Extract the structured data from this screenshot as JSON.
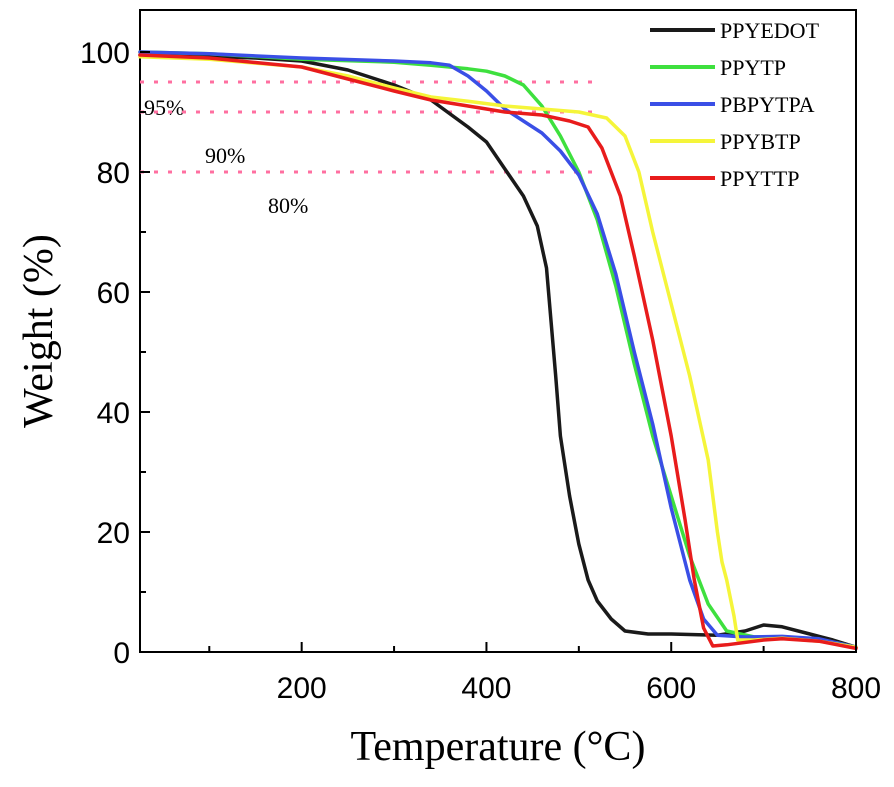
{
  "chart_data": {
    "type": "line",
    "title": "",
    "xlabel": "Temperature (°C)",
    "ylabel": "Weight (%)",
    "xlim": [
      25,
      800
    ],
    "ylim": [
      0,
      107
    ],
    "xticks": [
      200,
      400,
      600,
      800
    ],
    "yticks": [
      0,
      20,
      40,
      60,
      80,
      100
    ],
    "grid": false,
    "legend": "top-right",
    "reference_lines": [
      {
        "y": 95,
        "label": "95%",
        "x_end": 515
      },
      {
        "y": 90,
        "label": "90%",
        "x_end": 515
      },
      {
        "y": 80,
        "label": "80%",
        "x_end": 515
      }
    ],
    "series": [
      {
        "name": "PPYEDOT",
        "color": "#1a1a1a",
        "points": [
          [
            25,
            99.5
          ],
          [
            100,
            99.3
          ],
          [
            150,
            99.0
          ],
          [
            200,
            98.5
          ],
          [
            250,
            97.0
          ],
          [
            300,
            94.5
          ],
          [
            340,
            92.0
          ],
          [
            380,
            87.5
          ],
          [
            400,
            85.0
          ],
          [
            420,
            80.5
          ],
          [
            440,
            76.0
          ],
          [
            455,
            71.0
          ],
          [
            465,
            64.0
          ],
          [
            470,
            55.0
          ],
          [
            475,
            46.0
          ],
          [
            480,
            36.0
          ],
          [
            490,
            26.0
          ],
          [
            500,
            18.0
          ],
          [
            510,
            12.0
          ],
          [
            520,
            8.5
          ],
          [
            535,
            5.5
          ],
          [
            550,
            3.5
          ],
          [
            575,
            3.0
          ],
          [
            600,
            3.0
          ],
          [
            650,
            2.8
          ],
          [
            680,
            3.5
          ],
          [
            700,
            4.5
          ],
          [
            720,
            4.2
          ],
          [
            750,
            3.0
          ],
          [
            775,
            2.0
          ],
          [
            800,
            0.8
          ]
        ]
      },
      {
        "name": "PPYTP",
        "color": "#3ee03e",
        "points": [
          [
            25,
            100.0
          ],
          [
            100,
            99.7
          ],
          [
            200,
            98.8
          ],
          [
            300,
            98.3
          ],
          [
            340,
            97.8
          ],
          [
            380,
            97.2
          ],
          [
            400,
            96.8
          ],
          [
            420,
            96.0
          ],
          [
            440,
            94.5
          ],
          [
            460,
            91.0
          ],
          [
            480,
            86.0
          ],
          [
            500,
            80.0
          ],
          [
            520,
            72.0
          ],
          [
            540,
            61.0
          ],
          [
            560,
            48.0
          ],
          [
            580,
            36.0
          ],
          [
            600,
            26.0
          ],
          [
            620,
            16.0
          ],
          [
            640,
            8.0
          ],
          [
            660,
            3.5
          ],
          [
            690,
            2.5
          ],
          [
            720,
            2.5
          ],
          [
            750,
            2.2
          ],
          [
            780,
            1.5
          ],
          [
            800,
            0.8
          ]
        ]
      },
      {
        "name": "PBPYTPA",
        "color": "#3a4fe6",
        "points": [
          [
            25,
            100.0
          ],
          [
            100,
            99.7
          ],
          [
            200,
            99.0
          ],
          [
            300,
            98.5
          ],
          [
            340,
            98.2
          ],
          [
            360,
            97.8
          ],
          [
            380,
            96.0
          ],
          [
            400,
            93.5
          ],
          [
            420,
            90.5
          ],
          [
            440,
            88.5
          ],
          [
            460,
            86.5
          ],
          [
            480,
            83.5
          ],
          [
            500,
            79.5
          ],
          [
            520,
            73.0
          ],
          [
            540,
            63.0
          ],
          [
            560,
            50.0
          ],
          [
            580,
            38.0
          ],
          [
            600,
            24.0
          ],
          [
            620,
            12.0
          ],
          [
            635,
            5.5
          ],
          [
            650,
            2.8
          ],
          [
            680,
            2.5
          ],
          [
            720,
            2.6
          ],
          [
            760,
            2.2
          ],
          [
            800,
            0.8
          ]
        ]
      },
      {
        "name": "PPYBTP",
        "color": "#f5f53a",
        "points": [
          [
            25,
            99.2
          ],
          [
            100,
            98.8
          ],
          [
            200,
            97.5
          ],
          [
            250,
            96.0
          ],
          [
            300,
            94.0
          ],
          [
            340,
            92.5
          ],
          [
            380,
            91.8
          ],
          [
            420,
            91.0
          ],
          [
            460,
            90.5
          ],
          [
            500,
            90.0
          ],
          [
            530,
            89.0
          ],
          [
            550,
            86.0
          ],
          [
            565,
            80.0
          ],
          [
            580,
            70.0
          ],
          [
            600,
            58.0
          ],
          [
            620,
            46.0
          ],
          [
            640,
            32.0
          ],
          [
            650,
            20.0
          ],
          [
            655,
            15.0
          ],
          [
            660,
            12.0
          ],
          [
            668,
            6.0
          ],
          [
            672,
            2.0
          ],
          [
            690,
            2.0
          ],
          [
            720,
            2.3
          ],
          [
            760,
            1.8
          ],
          [
            800,
            0.8
          ]
        ]
      },
      {
        "name": "PPYTTP",
        "color": "#e81c1c",
        "points": [
          [
            25,
            99.5
          ],
          [
            100,
            99.0
          ],
          [
            200,
            97.5
          ],
          [
            250,
            95.5
          ],
          [
            300,
            93.5
          ],
          [
            340,
            92.0
          ],
          [
            380,
            91.0
          ],
          [
            420,
            90.0
          ],
          [
            460,
            89.5
          ],
          [
            490,
            88.5
          ],
          [
            510,
            87.5
          ],
          [
            525,
            84.0
          ],
          [
            545,
            76.0
          ],
          [
            560,
            66.0
          ],
          [
            580,
            52.0
          ],
          [
            600,
            36.0
          ],
          [
            615,
            22.0
          ],
          [
            625,
            12.0
          ],
          [
            635,
            4.0
          ],
          [
            645,
            1.0
          ],
          [
            660,
            1.2
          ],
          [
            700,
            2.0
          ],
          [
            720,
            2.2
          ],
          [
            760,
            1.8
          ],
          [
            800,
            0.6
          ]
        ]
      }
    ]
  }
}
